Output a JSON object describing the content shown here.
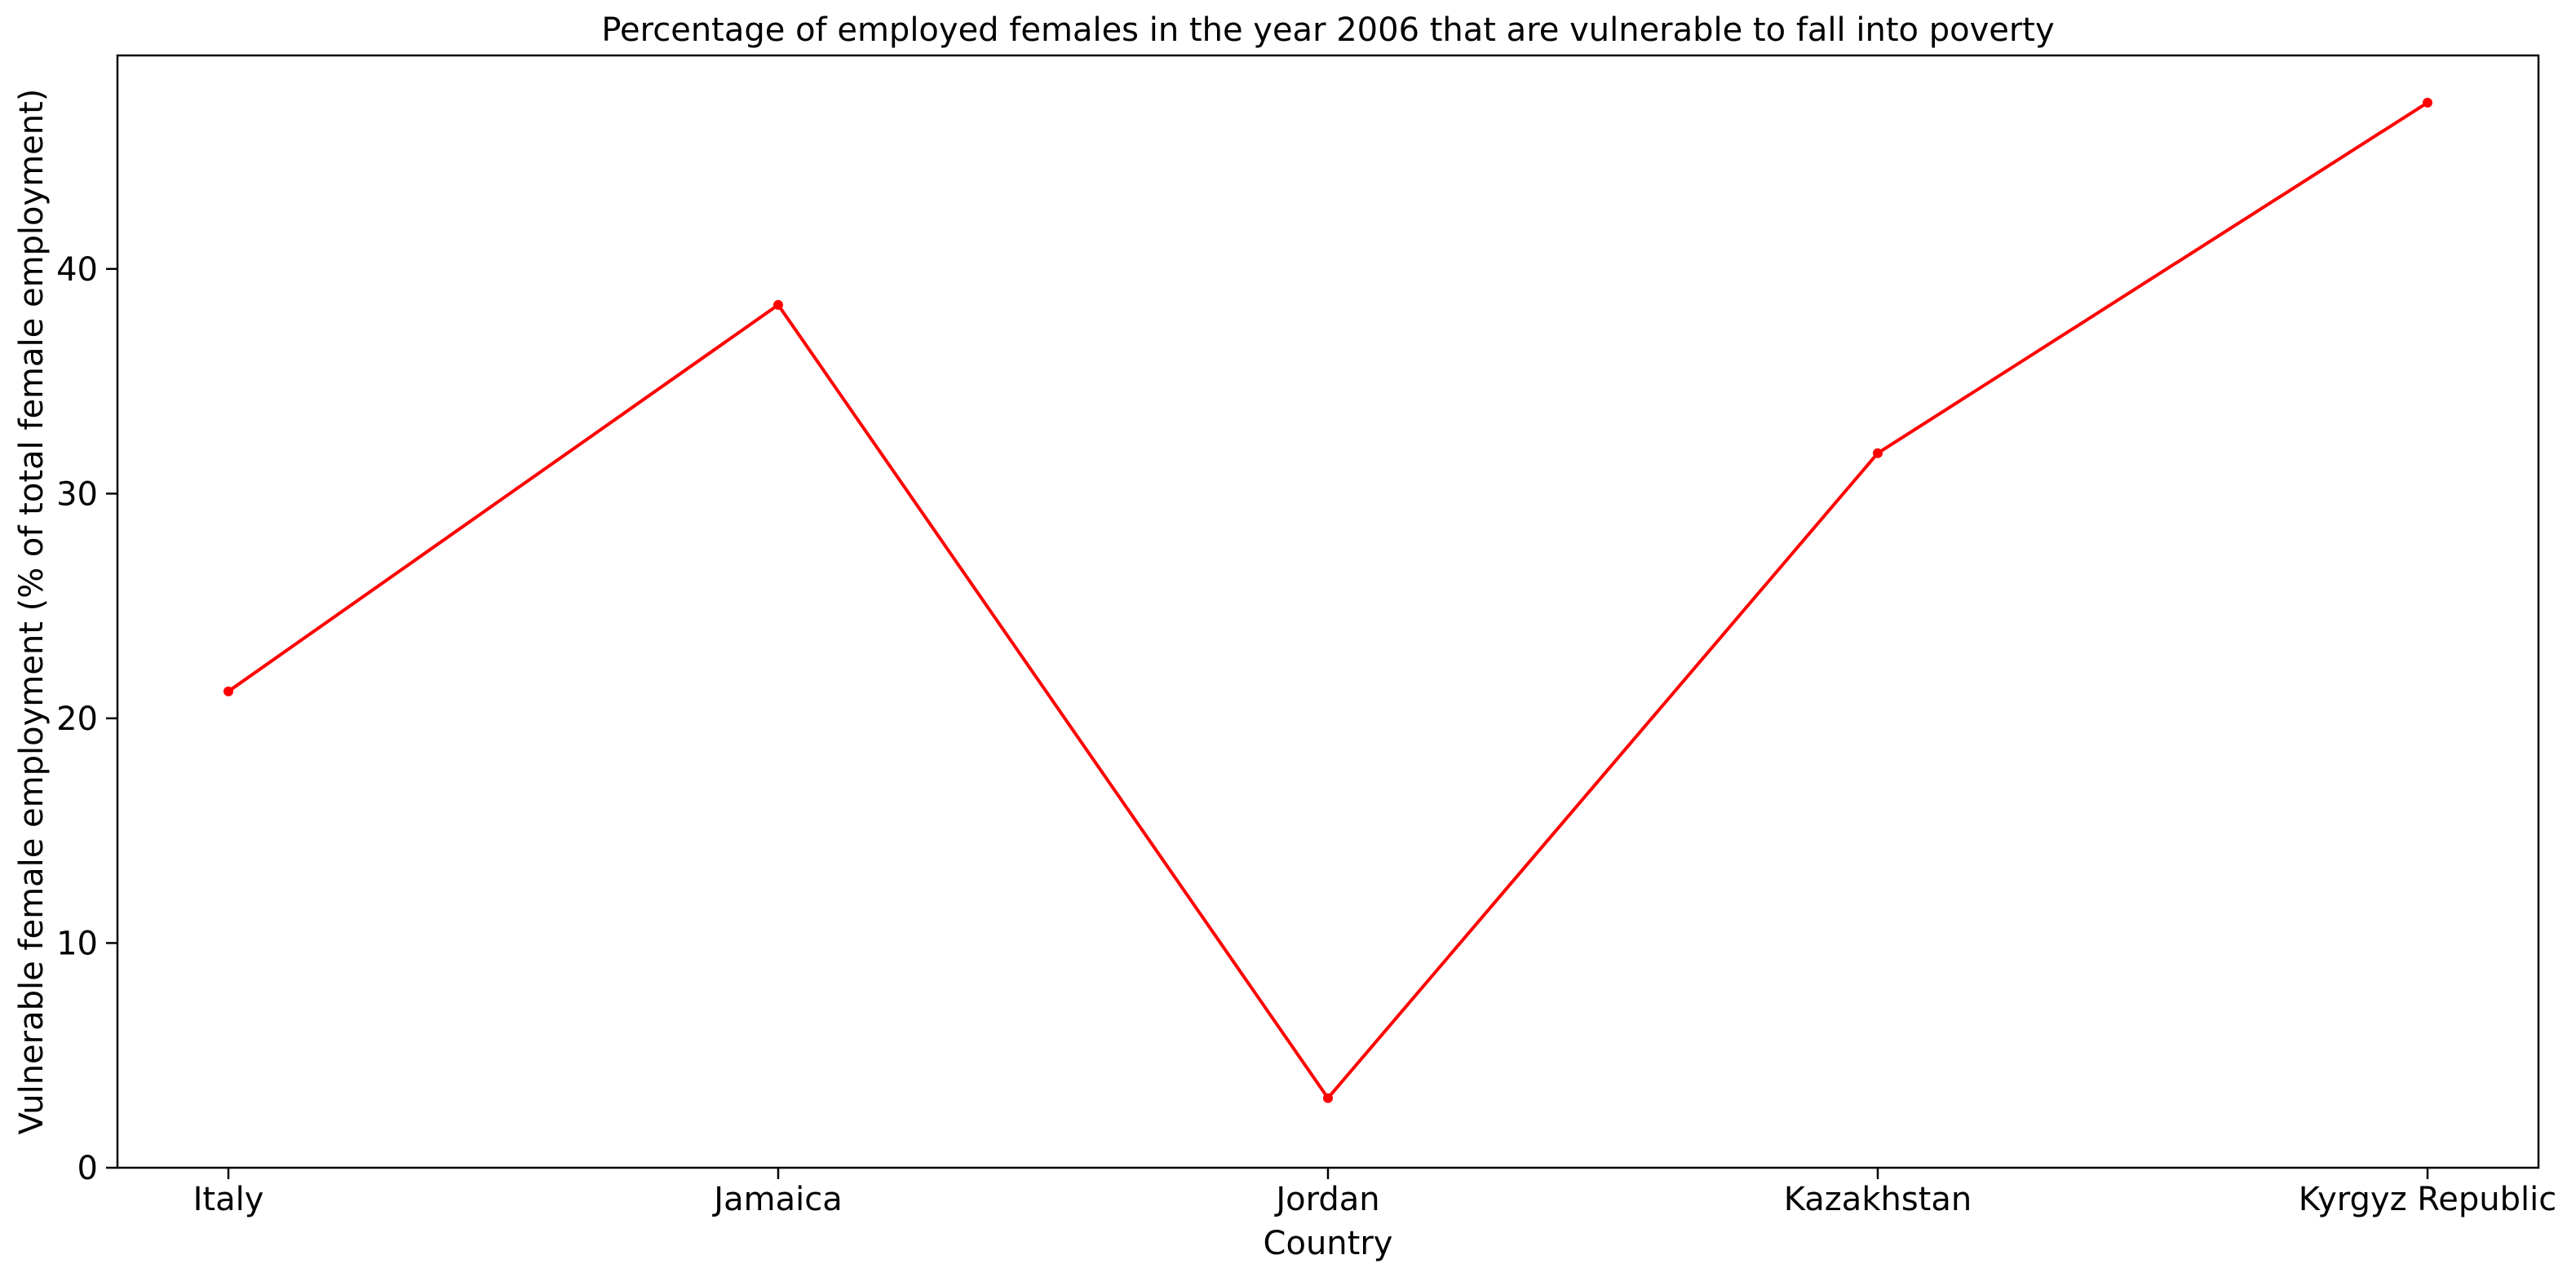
{
  "chart_data": {
    "type": "line",
    "title": "Percentage of employed females in the year 2006 that are vulnerable to fall into poverty",
    "xlabel": "Country",
    "ylabel": "Vulnerable female employment (% of total female employment)",
    "categories": [
      "Italy",
      "Jamaica",
      "Jordan",
      "Kazakhstan",
      "Kyrgyz Republic"
    ],
    "series": [
      {
        "values": [
          21.2,
          38.4,
          3.1,
          31.8,
          47.4
        ],
        "color": "#ff0000"
      }
    ],
    "ylim": [
      0,
      49.5
    ],
    "yticks": [
      0,
      10,
      20,
      30,
      40
    ],
    "grid": false,
    "legend": "none"
  }
}
